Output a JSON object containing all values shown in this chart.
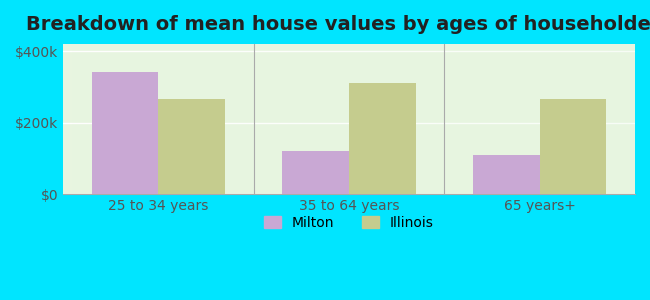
{
  "title": "Breakdown of mean house values by ages of householders",
  "categories": [
    "25 to 34 years",
    "35 to 64 years",
    "65 years+"
  ],
  "milton_values": [
    340000,
    120000,
    110000
  ],
  "illinois_values": [
    265000,
    310000,
    265000
  ],
  "ylim": [
    0,
    420000
  ],
  "yticks": [
    0,
    200000,
    400000
  ],
  "ytick_labels": [
    "$0",
    "$200k",
    "$400k"
  ],
  "milton_color": "#c9a8d4",
  "illinois_color": "#c5cc8e",
  "background_color": "#e8f5e0",
  "outer_background": "#00e5ff",
  "legend_milton": "Milton",
  "legend_illinois": "Illinois",
  "bar_width": 0.35,
  "title_fontsize": 14,
  "tick_fontsize": 10,
  "legend_fontsize": 10
}
